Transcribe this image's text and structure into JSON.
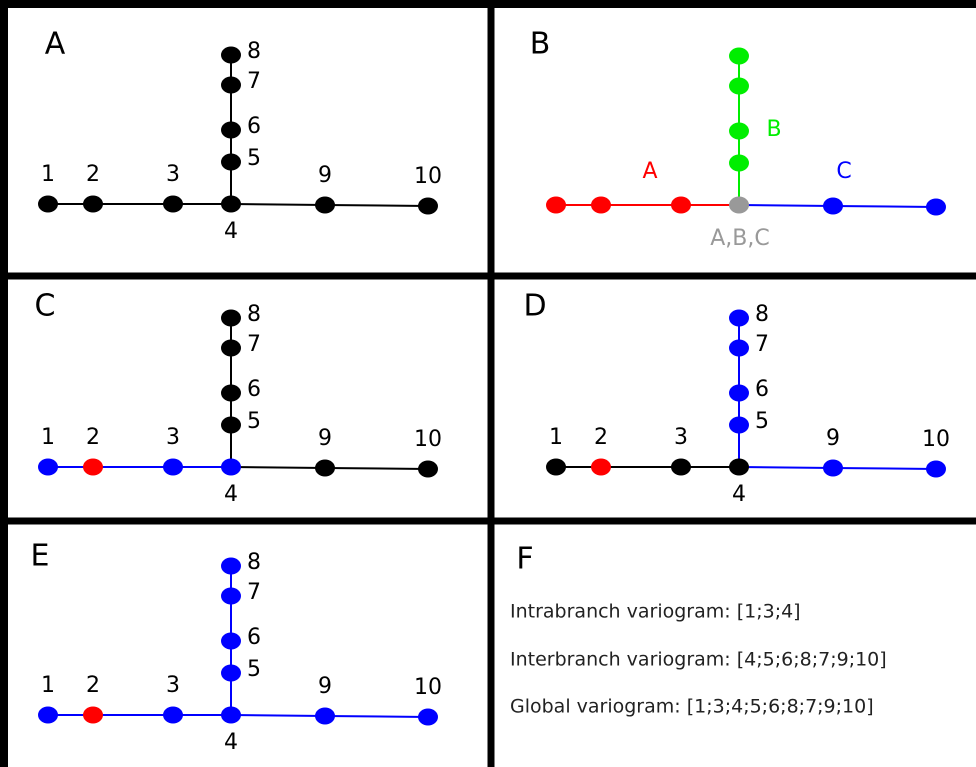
{
  "panels": [
    {
      "label": "A",
      "nodes": [
        {
          "label": "1",
          "color": "#000000"
        },
        {
          "label": "2",
          "color": "#000000"
        },
        {
          "label": "3",
          "color": "#000000"
        },
        {
          "label": "4",
          "color": "#000000"
        },
        {
          "label": "5",
          "color": "#000000"
        },
        {
          "label": "6",
          "color": "#000000"
        },
        {
          "label": "7",
          "color": "#000000"
        },
        {
          "label": "8",
          "color": "#000000"
        },
        {
          "label": "9",
          "color": "#000000"
        },
        {
          "label": "10",
          "color": "#000000"
        }
      ],
      "edge_colors": [
        "#000000",
        "#000000",
        "#000000",
        "#000000",
        "#000000",
        "#000000",
        "#000000",
        "#000000",
        "#000000"
      ]
    },
    {
      "label": "B",
      "nodes": [
        {
          "color": "#ff0000"
        },
        {
          "color": "#ff0000"
        },
        {
          "color": "#ff0000"
        },
        {
          "color": "#999999"
        },
        {
          "color": "#00ee00"
        },
        {
          "color": "#00ee00"
        },
        {
          "color": "#00ee00"
        },
        {
          "color": "#00ee00"
        },
        {
          "color": "#0000ff"
        },
        {
          "color": "#0000ff"
        }
      ],
      "edge_colors": [
        "#ff0000",
        "#ff0000",
        "#ff0000",
        "#00ee00",
        "#00ee00",
        "#00ee00",
        "#00ee00",
        "#0000ff",
        "#0000ff"
      ],
      "annotations": [
        {
          "text": "A",
          "color": "#ff0000"
        },
        {
          "text": "B",
          "color": "#00ee00"
        },
        {
          "text": "C",
          "color": "#0000ff"
        },
        {
          "text": "A,B,C",
          "color": "#999999"
        }
      ]
    },
    {
      "label": "C",
      "nodes": [
        {
          "label": "1",
          "color": "#0000ff"
        },
        {
          "label": "2",
          "color": "#ff0000"
        },
        {
          "label": "3",
          "color": "#0000ff"
        },
        {
          "label": "4",
          "color": "#0000ff"
        },
        {
          "label": "5",
          "color": "#000000"
        },
        {
          "label": "6",
          "color": "#000000"
        },
        {
          "label": "7",
          "color": "#000000"
        },
        {
          "label": "8",
          "color": "#000000"
        },
        {
          "label": "9",
          "color": "#000000"
        },
        {
          "label": "10",
          "color": "#000000"
        }
      ],
      "edge_colors": [
        "#0000ff",
        "#0000ff",
        "#0000ff",
        "#000000",
        "#000000",
        "#000000",
        "#000000",
        "#000000",
        "#000000"
      ]
    },
    {
      "label": "D",
      "nodes": [
        {
          "label": "1",
          "color": "#000000"
        },
        {
          "label": "2",
          "color": "#ff0000"
        },
        {
          "label": "3",
          "color": "#000000"
        },
        {
          "label": "4",
          "color": "#000000"
        },
        {
          "label": "5",
          "color": "#0000ff"
        },
        {
          "label": "6",
          "color": "#0000ff"
        },
        {
          "label": "7",
          "color": "#0000ff"
        },
        {
          "label": "8",
          "color": "#0000ff"
        },
        {
          "label": "9",
          "color": "#0000ff"
        },
        {
          "label": "10",
          "color": "#0000ff"
        }
      ],
      "edge_colors": [
        "#000000",
        "#000000",
        "#000000",
        "#0000ff",
        "#0000ff",
        "#0000ff",
        "#0000ff",
        "#0000ff",
        "#0000ff"
      ]
    },
    {
      "label": "E",
      "nodes": [
        {
          "label": "1",
          "color": "#0000ff"
        },
        {
          "label": "2",
          "color": "#ff0000"
        },
        {
          "label": "3",
          "color": "#0000ff"
        },
        {
          "label": "4",
          "color": "#0000ff"
        },
        {
          "label": "5",
          "color": "#0000ff"
        },
        {
          "label": "6",
          "color": "#0000ff"
        },
        {
          "label": "7",
          "color": "#0000ff"
        },
        {
          "label": "8",
          "color": "#0000ff"
        },
        {
          "label": "9",
          "color": "#0000ff"
        },
        {
          "label": "10",
          "color": "#0000ff"
        }
      ],
      "edge_colors": [
        "#0000ff",
        "#0000ff",
        "#0000ff",
        "#0000ff",
        "#0000ff",
        "#0000ff",
        "#0000ff",
        "#0000ff",
        "#0000ff"
      ]
    },
    {
      "label": "F",
      "lines": [
        "Intrabranch variogram: [1;3;4]",
        "Interbranch variogram: [4;5;6;8;7;9;10]",
        "Global variogram: [1;3;4;5;6;8;7;9;10]"
      ]
    }
  ]
}
